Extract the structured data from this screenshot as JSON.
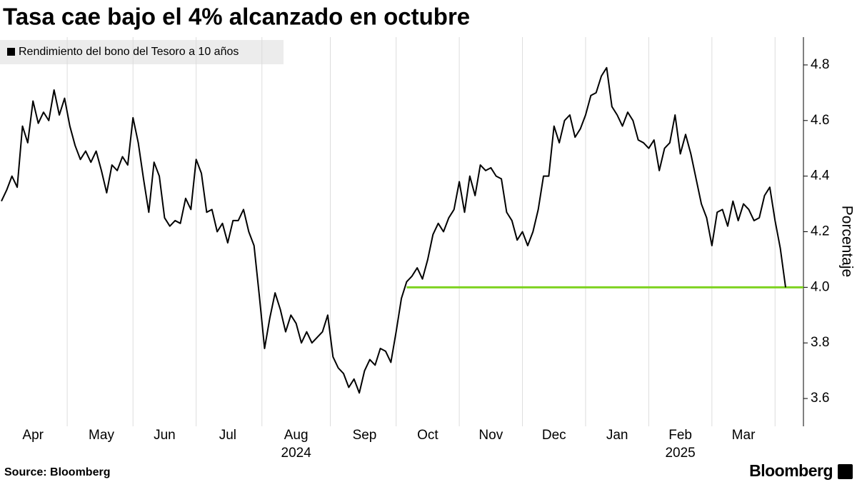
{
  "chart_data": {
    "type": "line",
    "title": "Tasa cae bajo el 4% alcanzado en octubre",
    "y_label": "Porcentaje",
    "source": "Source: Bloomberg",
    "brand": "Bloomberg",
    "categories": [
      null,
      null,
      null,
      null,
      null,
      null,
      "Apr",
      null,
      null,
      null,
      null,
      null,
      null,
      null,
      null,
      null,
      null,
      null,
      null,
      "May",
      null,
      null,
      null,
      null,
      null,
      null,
      null,
      null,
      null,
      null,
      null,
      "Jun",
      null,
      null,
      null,
      null,
      null,
      null,
      null,
      null,
      null,
      null,
      null,
      "Jul",
      null,
      null,
      null,
      null,
      null,
      null,
      null,
      null,
      null,
      null,
      null,
      null,
      "Aug",
      null,
      null,
      null,
      null,
      null,
      null,
      null,
      null,
      null,
      null,
      null,
      null,
      "Sep",
      null,
      null,
      null,
      null,
      null,
      null,
      null,
      null,
      null,
      null,
      null,
      "Oct",
      null,
      null,
      null,
      null,
      null,
      null,
      null,
      null,
      null,
      null,
      null,
      "Nov",
      null,
      null,
      null,
      null,
      null,
      null,
      null,
      null,
      null,
      null,
      null,
      "Dec",
      null,
      null,
      null,
      null,
      null,
      null,
      null,
      null,
      null,
      null,
      null,
      "Jan",
      null,
      null,
      null,
      null,
      null,
      null,
      null,
      null,
      null,
      null,
      null,
      "Feb",
      null,
      null,
      null,
      null,
      null,
      null,
      null,
      null,
      null,
      null,
      null,
      "Mar",
      null,
      null,
      null,
      null,
      null,
      null,
      null,
      null
    ],
    "category_years": [
      null,
      null,
      null,
      null,
      null,
      null,
      null,
      null,
      null,
      null,
      null,
      null,
      null,
      null,
      null,
      null,
      null,
      null,
      null,
      null,
      null,
      null,
      null,
      null,
      null,
      null,
      null,
      null,
      null,
      null,
      null,
      null,
      null,
      null,
      null,
      null,
      null,
      null,
      null,
      null,
      null,
      null,
      null,
      null,
      null,
      null,
      null,
      null,
      null,
      null,
      null,
      null,
      null,
      null,
      null,
      null,
      "2024",
      null,
      null,
      null,
      null,
      null,
      null,
      null,
      null,
      null,
      null,
      null,
      null,
      null,
      null,
      null,
      null,
      null,
      null,
      null,
      null,
      null,
      null,
      null,
      null,
      null,
      null,
      null,
      null,
      null,
      null,
      null,
      null,
      null,
      null,
      null,
      null,
      null,
      null,
      null,
      null,
      null,
      null,
      null,
      null,
      null,
      null,
      null,
      null,
      null,
      null,
      null,
      null,
      null,
      null,
      null,
      null,
      null,
      null,
      null,
      null,
      null,
      null,
      null,
      null,
      null,
      null,
      null,
      null,
      null,
      null,
      null,
      null,
      "2025",
      null,
      null,
      null,
      null,
      null,
      null,
      null,
      null,
      null,
      null,
      null,
      null,
      null,
      null,
      null,
      null,
      null,
      null,
      null,
      null
    ],
    "series": [
      {
        "name": "Rendimiento del bono del Tesoro a 10 años",
        "color": "#000000",
        "values": [
          4.31,
          4.35,
          4.4,
          4.36,
          4.58,
          4.52,
          4.67,
          4.59,
          4.63,
          4.6,
          4.71,
          4.62,
          4.68,
          4.58,
          4.51,
          4.46,
          4.49,
          4.45,
          4.49,
          4.42,
          4.34,
          4.44,
          4.42,
          4.47,
          4.44,
          4.61,
          4.52,
          4.39,
          4.27,
          4.45,
          4.4,
          4.25,
          4.22,
          4.24,
          4.23,
          4.32,
          4.28,
          4.46,
          4.41,
          4.27,
          4.28,
          4.2,
          4.23,
          4.16,
          4.24,
          4.24,
          4.28,
          4.2,
          4.15,
          3.97,
          3.78,
          3.89,
          3.98,
          3.92,
          3.84,
          3.9,
          3.87,
          3.8,
          3.84,
          3.8,
          3.82,
          3.84,
          3.9,
          3.75,
          3.71,
          3.69,
          3.64,
          3.67,
          3.62,
          3.7,
          3.74,
          3.72,
          3.78,
          3.77,
          3.73,
          3.84,
          3.96,
          4.02,
          4.04,
          4.07,
          4.03,
          4.1,
          4.19,
          4.23,
          4.2,
          4.25,
          4.28,
          4.38,
          4.27,
          4.4,
          4.33,
          4.44,
          4.42,
          4.43,
          4.4,
          4.39,
          4.27,
          4.24,
          4.17,
          4.2,
          4.15,
          4.2,
          4.28,
          4.4,
          4.4,
          4.58,
          4.52,
          4.6,
          4.62,
          4.54,
          4.57,
          4.62,
          4.69,
          4.7,
          4.76,
          4.79,
          4.65,
          4.62,
          4.58,
          4.63,
          4.6,
          4.53,
          4.52,
          4.5,
          4.53,
          4.42,
          4.5,
          4.52,
          4.62,
          4.48,
          4.55,
          4.48,
          4.39,
          4.3,
          4.25,
          4.15,
          4.27,
          4.28,
          4.22,
          4.31,
          4.24,
          4.3,
          4.28,
          4.24,
          4.25,
          4.33,
          4.36,
          4.24,
          4.14,
          4.0
        ]
      }
    ],
    "reference_line": {
      "value": 4.0,
      "color": "#7ed321"
    },
    "ylim": [
      3.5,
      4.9
    ],
    "yticks": [
      {
        "value": 3.6,
        "label": "3.6"
      },
      {
        "value": 3.8,
        "label": "3.8"
      },
      {
        "value": 4.0,
        "label": "4.0"
      },
      {
        "value": 4.2,
        "label": "4.2"
      },
      {
        "value": 4.4,
        "label": "4.4"
      },
      {
        "value": 4.6,
        "label": "4.6"
      },
      {
        "value": 4.8,
        "label": "4.8"
      }
    ],
    "y_axis_side": "right",
    "grid": "x"
  }
}
